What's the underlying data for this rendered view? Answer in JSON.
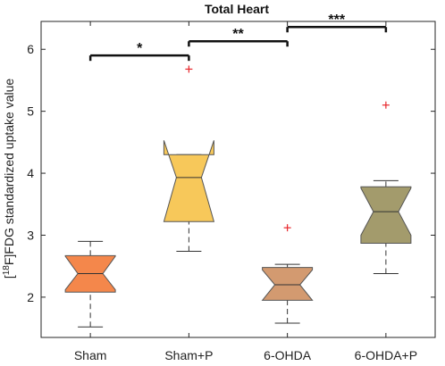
{
  "chart_data": {
    "type": "box",
    "title": "Total Heart",
    "ylabel_sup": "18",
    "ylabel_pre": "[",
    "ylabel_post": "F]FDG standardized uptake value",
    "ylim": [
      1.35,
      6.45
    ],
    "yticks": [
      2,
      3,
      4,
      5,
      6
    ],
    "notched": true,
    "grid": false,
    "categories": [
      "Sham",
      "Sham+P",
      "6-OHDA",
      "6-OHDA+P"
    ],
    "boxes": [
      {
        "name": "Sham",
        "whisker_low": 1.52,
        "q1": 2.08,
        "median": 2.38,
        "q3": 2.67,
        "whisker_high": 2.9,
        "notch_low": 2.12,
        "notch_high": 2.66,
        "outliers": [],
        "color": "#F4874B"
      },
      {
        "name": "Sham+P",
        "whisker_low": 2.74,
        "q1": 3.22,
        "median": 3.93,
        "q3": 4.3,
        "whisker_high": 4.3,
        "notch_low": 3.22,
        "notch_high": 4.53,
        "outliers": [
          5.68
        ],
        "color": "#F7C85A"
      },
      {
        "name": "6-OHDA",
        "whisker_low": 1.58,
        "q1": 1.95,
        "median": 2.2,
        "q3": 2.48,
        "whisker_high": 2.53,
        "notch_low": 1.95,
        "notch_high": 2.44,
        "outliers": [
          3.12
        ],
        "color": "#D39A70"
      },
      {
        "name": "6-OHDA+P",
        "whisker_low": 2.38,
        "q1": 2.87,
        "median": 3.38,
        "q3": 3.78,
        "whisker_high": 3.88,
        "notch_low": 3.0,
        "notch_high": 3.76,
        "outliers": [
          5.1
        ],
        "color": "#A39B6C"
      }
    ],
    "significance": [
      {
        "from": "Sham",
        "to": "Sham+P",
        "y": 5.9,
        "label": "*"
      },
      {
        "from": "Sham+P",
        "to": "6-OHDA",
        "y": 6.13,
        "label": "**"
      },
      {
        "from": "6-OHDA",
        "to": "6-OHDA+P",
        "y": 6.36,
        "label": "***"
      }
    ]
  }
}
